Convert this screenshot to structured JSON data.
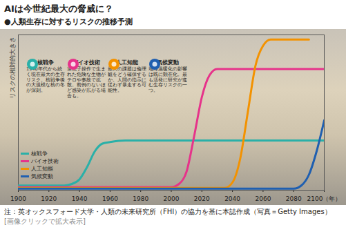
{
  "chart_data": {
    "type": "line",
    "title": "AIは今世紀最大の脅威に？",
    "subtitle": "●人類生存に対するリスクの推移予測",
    "y_label": "リスクの相対的大きさ",
    "x": [
      1900,
      1910,
      1920,
      1930,
      1935,
      1940,
      1945,
      1950,
      1955,
      1960,
      1970,
      1980,
      1990,
      2000,
      2005,
      2010,
      2015,
      2020,
      2025,
      2030,
      2035,
      2040,
      2045,
      2050,
      2055,
      2060,
      2065,
      2070,
      2080,
      2085,
      2090,
      2095,
      2100
    ],
    "series": [
      {
        "name": "核戦争",
        "color": "#2ab0a8",
        "values": [
          3,
          3,
          3,
          3,
          4,
          7,
          15,
          25,
          30,
          31,
          32,
          32,
          32,
          32,
          32,
          32,
          32,
          32,
          32,
          32,
          32,
          32,
          32,
          32,
          32,
          32,
          32,
          32,
          32,
          32,
          32,
          32,
          32
        ]
      },
      {
        "name": "バイオ技術",
        "color": "#e6338a",
        "values": [
          2,
          2,
          2,
          2,
          2,
          2,
          2,
          2,
          2,
          2,
          2,
          2,
          2,
          2,
          4,
          12,
          35,
          60,
          74,
          78,
          78,
          78,
          78,
          78,
          78,
          78,
          78,
          78,
          78,
          78,
          78,
          78,
          78
        ]
      },
      {
        "name": "人工知能",
        "color": "#f39200",
        "values": [
          1.5,
          1.5,
          1.5,
          1.5,
          1.5,
          1.5,
          1.5,
          1.5,
          1.5,
          1.5,
          1.5,
          1.5,
          1.5,
          1.5,
          1.5,
          1.5,
          1.5,
          1.5,
          1.5,
          1.5,
          1.5,
          5,
          20,
          50,
          80,
          93,
          97,
          97,
          97,
          97,
          97,
          null,
          null
        ]
      },
      {
        "name": "気候変動",
        "color": "#1f5fb0",
        "values": [
          1,
          1,
          1,
          1,
          1,
          1,
          1,
          1,
          1,
          1,
          1,
          1,
          1,
          1,
          1,
          1,
          1,
          1,
          1,
          1,
          1,
          1,
          1,
          1,
          1,
          1,
          1,
          1,
          1,
          3,
          10,
          25,
          45
        ]
      }
    ],
    "xlim": [
      1900,
      2100
    ],
    "xticks": [
      1900,
      1920,
      1940,
      1960,
      1980,
      2000,
      2020,
      2040,
      2060,
      2080,
      {
        "value": 2100,
        "label": "2100（年）"
      }
    ],
    "ylim": [
      0,
      100
    ],
    "tick_labels": "x",
    "legend": "bottom-left",
    "annotations": [
      {
        "label": "核戦争",
        "text": "1940年代から続く現在最大の生存リスク。核戦争後の大規模な核の冬が深刻。"
      },
      {
        "label": "バイオ技術",
        "text": "遺伝子操作で生まれた危険な生物がテロや事故で拡散。前例のないほど感染が広がる場合も。"
      },
      {
        "label": "人工知能",
        "text": "最大の課題は倫理観をどう確保するか。人間の指示に従わず暴走する可能性。"
      },
      {
        "label": "気候変動",
        "text": "地球温暖化の影響は既に顕在化。最も活発に研究が進む生存リスクの一つ。"
      }
    ],
    "note": "注：英オックスフォード大学・人類の未来研究所（FHI）の協力を基に本誌作成（写真＝Getty Images）",
    "caption": "[画像クリックで拡大表示]"
  }
}
